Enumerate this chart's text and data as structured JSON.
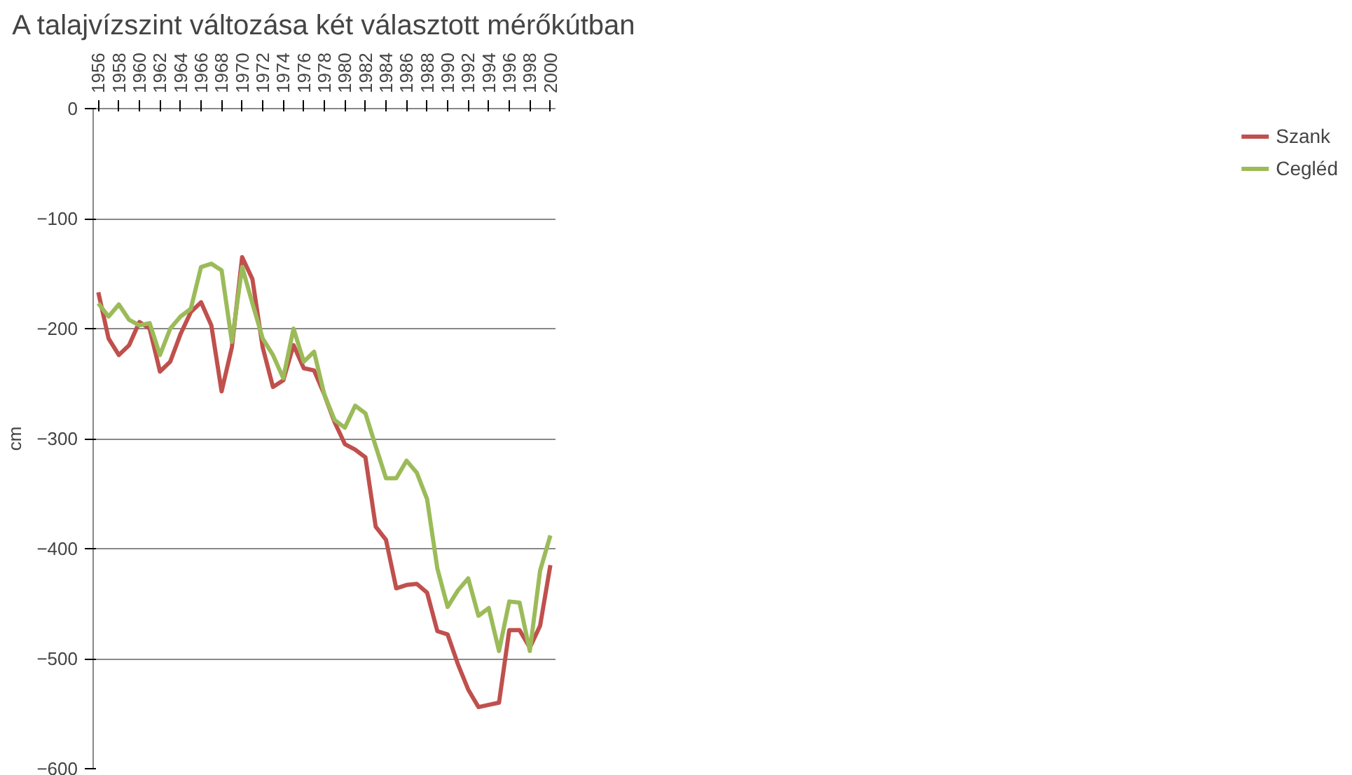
{
  "chart_data": {
    "type": "line",
    "title": "A talajvízszint változása két választott mérőkútban",
    "ylabel": "cm",
    "categories": [
      "1956",
      null,
      "1958",
      null,
      "1960",
      null,
      "1962",
      null,
      "1964",
      null,
      "1966",
      null,
      "1968",
      null,
      "1970",
      null,
      "1972",
      null,
      "1974",
      null,
      "1976",
      null,
      "1978",
      null,
      "1980",
      null,
      "1982",
      null,
      "1984",
      null,
      "1986",
      null,
      "1988",
      null,
      "1990",
      null,
      "1992",
      null,
      "1994",
      null,
      "1996",
      null,
      "1998",
      null,
      "2000"
    ],
    "series": [
      {
        "name": "Szank",
        "color": "#c0504d",
        "values": [
          -167,
          -209,
          -224,
          -215,
          -194,
          -200,
          -239,
          -230,
          -205,
          -185,
          -176,
          -197,
          -257,
          -217,
          -135,
          -155,
          -217,
          -253,
          -247,
          -215,
          -236,
          -238,
          -260,
          -285,
          -305,
          -310,
          -317,
          -380,
          -392,
          -436,
          -433,
          -432,
          -440,
          -475,
          -478,
          -505,
          -528,
          -544,
          -542,
          -540,
          -474,
          -474,
          -490,
          -470,
          -415
        ]
      },
      {
        "name": "Cegléd",
        "color": "#9bbb59",
        "values": [
          -177,
          -189,
          -178,
          -192,
          -197,
          -195,
          -224,
          -200,
          -189,
          -182,
          -144,
          -141,
          -147,
          -212,
          -144,
          -177,
          -209,
          -224,
          -245,
          -200,
          -230,
          -221,
          -260,
          -283,
          -290,
          -270,
          -277,
          -307,
          -336,
          -336,
          -320,
          -331,
          -355,
          -418,
          -453,
          -438,
          -427,
          -461,
          -454,
          -493,
          -448,
          -449,
          -493,
          -420,
          -388
        ]
      }
    ],
    "ylim": [
      -600,
      0
    ],
    "yticks": [
      0,
      -100,
      -200,
      -300,
      -400,
      -500,
      -600
    ],
    "grid": "y",
    "legend": "right",
    "line_style": "solid"
  }
}
